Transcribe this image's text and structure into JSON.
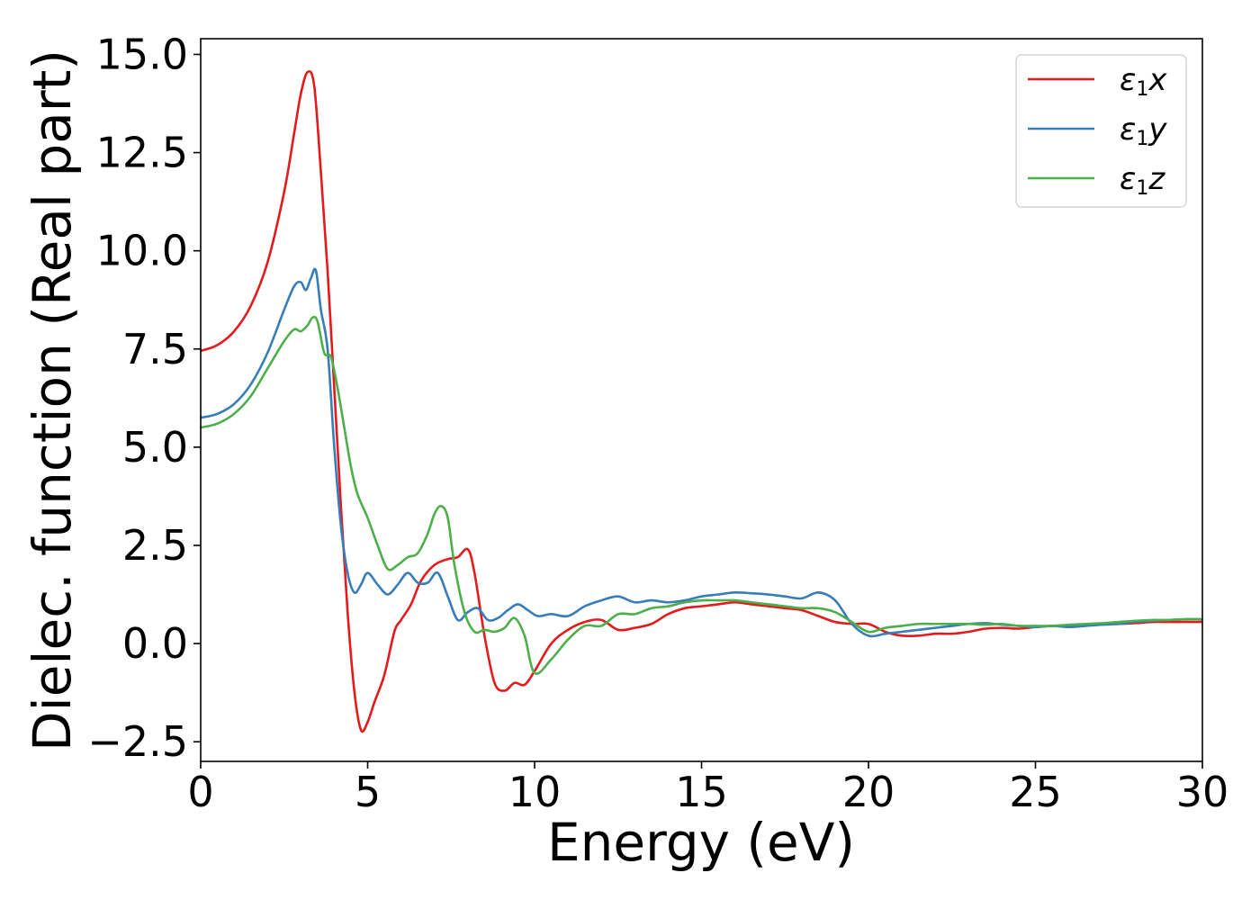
{
  "chart_data": {
    "type": "line",
    "title": "",
    "xlabel": "Energy (eV)",
    "ylabel": "Dielec. function (Real part)",
    "xlim": [
      0,
      30
    ],
    "ylim": [
      -3.0,
      15.4
    ],
    "xticks": [
      0,
      5,
      10,
      15,
      20,
      25,
      30
    ],
    "xtick_labels": [
      "0",
      "5",
      "10",
      "15",
      "20",
      "25",
      "30"
    ],
    "yticks": [
      -2.5,
      0.0,
      2.5,
      5.0,
      7.5,
      10.0,
      12.5,
      15.0
    ],
    "ytick_labels": [
      "−2.5",
      "0.0",
      "2.5",
      "5.0",
      "7.5",
      "10.0",
      "12.5",
      "15.0"
    ],
    "grid": false,
    "legend_position": "top-right",
    "series": [
      {
        "name": "x",
        "legend_symbol": "ε",
        "legend_subscript": "1",
        "color": "#e41a1c",
        "x": [
          0,
          0.5,
          1.0,
          1.5,
          2.0,
          2.5,
          2.8,
          3.0,
          3.2,
          3.4,
          3.6,
          3.8,
          4.0,
          4.2,
          4.4,
          4.6,
          4.8,
          5.0,
          5.2,
          5.5,
          5.8,
          6.0,
          6.3,
          6.6,
          7.0,
          7.4,
          7.7,
          8.0,
          8.2,
          8.5,
          8.8,
          9.1,
          9.4,
          9.7,
          10.0,
          10.5,
          11.0,
          11.5,
          12.0,
          12.5,
          13.0,
          13.5,
          14.0,
          14.5,
          15.0,
          15.5,
          16.0,
          16.5,
          17.0,
          17.5,
          18.0,
          18.5,
          19.0,
          19.5,
          20.0,
          20.5,
          21.0,
          21.5,
          22.0,
          22.5,
          23.0,
          23.5,
          24.0,
          24.5,
          25.0,
          25.5,
          26.0,
          26.5,
          27.0,
          27.5,
          28.0,
          28.5,
          29.0,
          29.5,
          30.0
        ],
        "y": [
          7.45,
          7.6,
          7.95,
          8.6,
          9.7,
          11.5,
          13.0,
          14.0,
          14.55,
          14.2,
          12.0,
          9.5,
          6.5,
          3.5,
          0.8,
          -1.2,
          -2.2,
          -2.0,
          -1.5,
          -0.8,
          0.3,
          0.6,
          1.0,
          1.6,
          2.0,
          2.15,
          2.2,
          2.4,
          1.8,
          0.2,
          -1.0,
          -1.2,
          -1.0,
          -1.05,
          -0.7,
          0.0,
          0.35,
          0.55,
          0.6,
          0.35,
          0.4,
          0.5,
          0.75,
          0.9,
          0.95,
          1.0,
          1.05,
          1.0,
          0.95,
          0.9,
          0.85,
          0.7,
          0.55,
          0.5,
          0.5,
          0.3,
          0.2,
          0.2,
          0.25,
          0.25,
          0.3,
          0.38,
          0.4,
          0.38,
          0.42,
          0.45,
          0.45,
          0.48,
          0.5,
          0.5,
          0.52,
          0.55,
          0.55,
          0.55,
          0.55
        ]
      },
      {
        "name": "y",
        "legend_symbol": "ε",
        "legend_subscript": "1",
        "color": "#377eb8",
        "x": [
          0,
          0.5,
          1.0,
          1.5,
          2.0,
          2.5,
          2.8,
          3.0,
          3.15,
          3.3,
          3.45,
          3.6,
          3.8,
          4.0,
          4.2,
          4.4,
          4.6,
          4.8,
          5.0,
          5.3,
          5.6,
          5.9,
          6.2,
          6.5,
          6.8,
          7.1,
          7.4,
          7.7,
          8.0,
          8.3,
          8.6,
          8.9,
          9.2,
          9.5,
          9.8,
          10.1,
          10.5,
          11.0,
          11.5,
          12.0,
          12.5,
          13.0,
          13.5,
          14.0,
          14.5,
          15.0,
          15.5,
          16.0,
          16.5,
          17.0,
          17.5,
          18.0,
          18.5,
          19.0,
          19.5,
          20.0,
          20.5,
          21.0,
          21.5,
          22.0,
          22.5,
          23.0,
          23.5,
          24.0,
          24.5,
          25.0,
          25.5,
          26.0,
          26.5,
          27.0,
          27.5,
          28.0,
          28.5,
          29.0,
          29.5,
          30.0
        ],
        "y": [
          5.75,
          5.85,
          6.1,
          6.6,
          7.4,
          8.5,
          9.1,
          9.2,
          9.0,
          9.3,
          9.5,
          8.5,
          7.5,
          5.0,
          3.0,
          1.8,
          1.3,
          1.5,
          1.8,
          1.5,
          1.25,
          1.5,
          1.8,
          1.55,
          1.55,
          1.8,
          1.2,
          0.6,
          0.8,
          0.9,
          0.6,
          0.65,
          0.85,
          1.0,
          0.85,
          0.7,
          0.75,
          0.7,
          0.95,
          1.1,
          1.2,
          1.05,
          1.1,
          1.05,
          1.1,
          1.2,
          1.25,
          1.3,
          1.28,
          1.25,
          1.2,
          1.15,
          1.3,
          1.1,
          0.5,
          0.2,
          0.25,
          0.3,
          0.35,
          0.4,
          0.45,
          0.5,
          0.52,
          0.48,
          0.45,
          0.42,
          0.45,
          0.42,
          0.45,
          0.48,
          0.5,
          0.55,
          0.58,
          0.6,
          0.62,
          0.62
        ]
      },
      {
        "name": "z",
        "legend_symbol": "ε",
        "legend_subscript": "1",
        "color": "#4daf4a",
        "x": [
          0,
          0.5,
          1.0,
          1.5,
          2.0,
          2.5,
          2.8,
          3.0,
          3.2,
          3.35,
          3.5,
          3.7,
          3.9,
          4.1,
          4.3,
          4.5,
          4.7,
          5.0,
          5.3,
          5.6,
          5.9,
          6.2,
          6.5,
          6.8,
          7.0,
          7.2,
          7.4,
          7.6,
          7.9,
          8.2,
          8.5,
          8.8,
          9.1,
          9.4,
          9.7,
          10.0,
          10.5,
          11.0,
          11.5,
          12.0,
          12.5,
          13.0,
          13.5,
          14.0,
          14.5,
          15.0,
          15.5,
          16.0,
          16.5,
          17.0,
          17.5,
          18.0,
          18.5,
          19.0,
          19.5,
          20.0,
          20.5,
          21.0,
          21.5,
          22.0,
          22.5,
          23.0,
          23.5,
          24.0,
          24.5,
          25.0,
          25.5,
          26.0,
          26.5,
          27.0,
          27.5,
          28.0,
          28.5,
          29.0,
          29.5,
          30.0
        ],
        "y": [
          5.5,
          5.6,
          5.85,
          6.3,
          7.0,
          7.7,
          8.0,
          7.95,
          8.1,
          8.3,
          8.2,
          7.4,
          7.3,
          6.5,
          5.5,
          4.5,
          3.8,
          3.2,
          2.5,
          1.9,
          2.0,
          2.2,
          2.3,
          2.8,
          3.3,
          3.5,
          3.2,
          2.0,
          0.8,
          0.3,
          0.35,
          0.3,
          0.4,
          0.65,
          0.2,
          -0.75,
          -0.4,
          0.1,
          0.45,
          0.45,
          0.75,
          0.75,
          0.9,
          0.95,
          1.05,
          1.1,
          1.1,
          1.1,
          1.05,
          1.0,
          0.95,
          0.9,
          0.9,
          0.8,
          0.55,
          0.3,
          0.4,
          0.45,
          0.5,
          0.5,
          0.5,
          0.5,
          0.48,
          0.5,
          0.45,
          0.45,
          0.45,
          0.48,
          0.5,
          0.52,
          0.55,
          0.58,
          0.6,
          0.6,
          0.62,
          0.62
        ]
      }
    ]
  }
}
